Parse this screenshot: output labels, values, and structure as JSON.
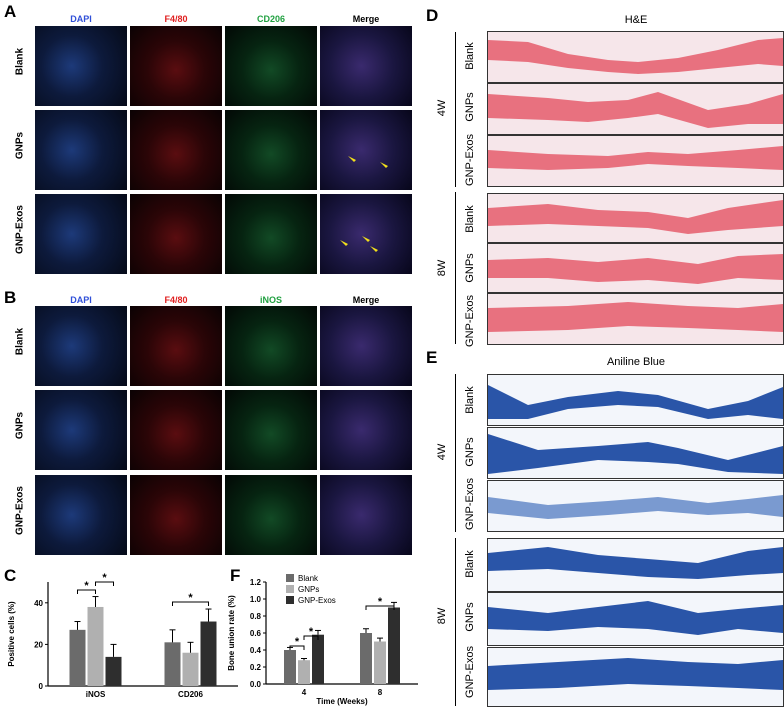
{
  "panels": {
    "A": "A",
    "B": "B",
    "C": "C",
    "D": "D",
    "E": "E",
    "F": "F"
  },
  "panel_A": {
    "columns": [
      "DAPI",
      "F4/80",
      "CD206",
      "Merge"
    ],
    "rows": [
      "Blank",
      "GNPs",
      "GNP-Exos"
    ],
    "column_colors": [
      "#2f4fd8",
      "#e02020",
      "#20a040",
      "#000000"
    ]
  },
  "panel_B": {
    "columns": [
      "DAPI",
      "F4/80",
      "iNOS",
      "Merge"
    ],
    "rows": [
      "Blank",
      "GNPs",
      "GNP-Exos"
    ],
    "column_colors": [
      "#2f4fd8",
      "#e02020",
      "#20a040",
      "#000000"
    ]
  },
  "panel_D": {
    "title": "H&E",
    "groups": [
      "4W",
      "8W"
    ],
    "rows": [
      "Blank",
      "GNPs",
      "GNP-Exos"
    ]
  },
  "panel_E": {
    "title": "Aniline Blue",
    "groups": [
      "4W",
      "8W"
    ],
    "rows": [
      "Blank",
      "GNPs",
      "GNP-Exos"
    ]
  },
  "chart_data": [
    {
      "id": "C",
      "type": "bar",
      "ylabel": "Positive cells (%)",
      "xlabel": "",
      "categories": [
        "iNOS",
        "CD206"
      ],
      "ylim": [
        0,
        50
      ],
      "yticks": [
        "0",
        "20",
        "40"
      ],
      "series": [
        {
          "name": "Blank",
          "values": [
            27,
            21
          ],
          "errors": [
            4,
            6
          ],
          "color": "#6b6b6b"
        },
        {
          "name": "GNPs",
          "values": [
            38,
            16
          ],
          "errors": [
            5,
            5
          ],
          "color": "#b0b0b0"
        },
        {
          "name": "GNP-Exos",
          "values": [
            14,
            31
          ],
          "errors": [
            6,
            6
          ],
          "color": "#2e2e2e"
        }
      ],
      "significance": [
        "*",
        "*",
        "*"
      ]
    },
    {
      "id": "F",
      "type": "bar",
      "ylabel": "Bone union rate (%)",
      "xlabel": "Time (Weeks)",
      "categories": [
        "4",
        "8"
      ],
      "ylim": [
        0,
        1.2
      ],
      "yticks": [
        "0.0",
        "0.2",
        "0.4",
        "0.6",
        "0.8",
        "1.0",
        "1.2"
      ],
      "series": [
        {
          "name": "Blank",
          "values": [
            0.4,
            0.6
          ],
          "errors": [
            0.03,
            0.05
          ],
          "color": "#6b6b6b"
        },
        {
          "name": "GNPs",
          "values": [
            0.28,
            0.5
          ],
          "errors": [
            0.02,
            0.04
          ],
          "color": "#b0b0b0"
        },
        {
          "name": "GNP-Exos",
          "values": [
            0.58,
            0.9
          ],
          "errors": [
            0.05,
            0.06
          ],
          "color": "#2e2e2e"
        }
      ],
      "legend": [
        "Blank",
        "GNPs",
        "GNP-Exos"
      ],
      "legend_position": "top-right",
      "significance": [
        "*",
        "*",
        "*"
      ]
    }
  ]
}
